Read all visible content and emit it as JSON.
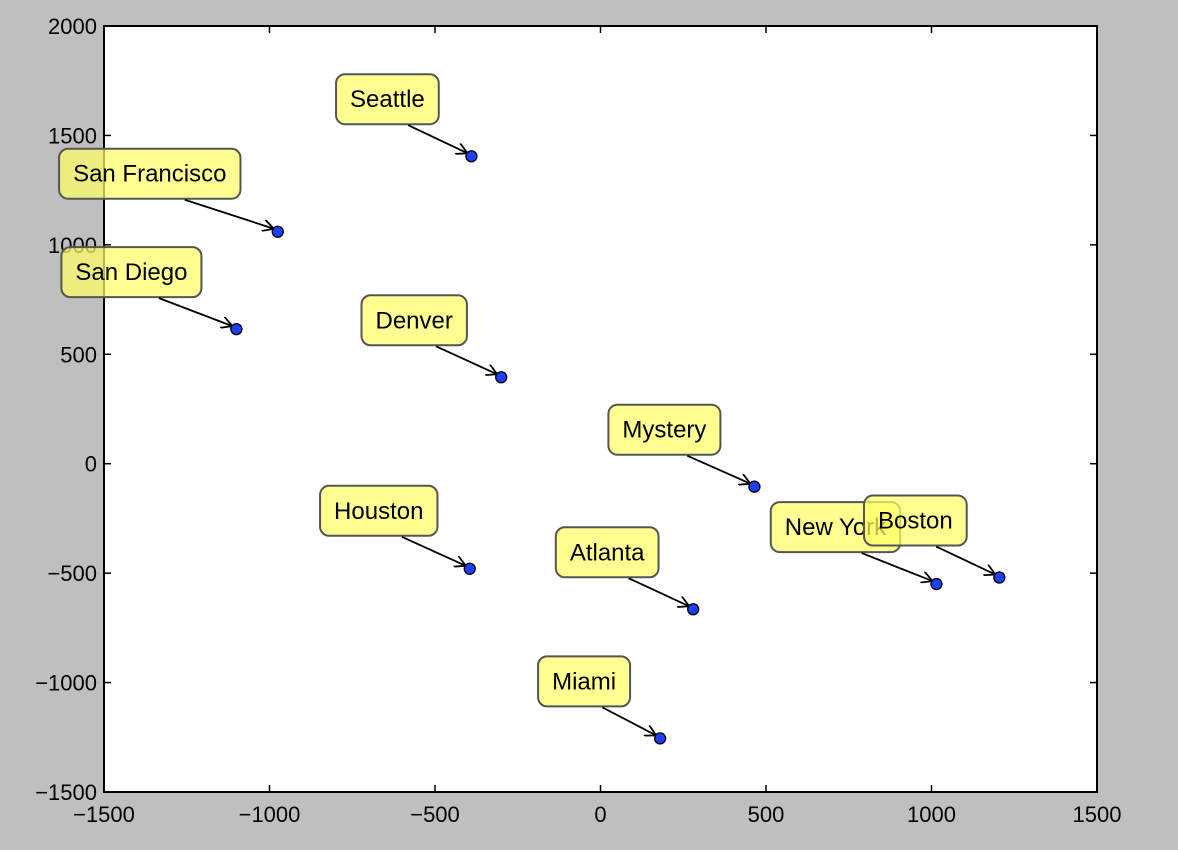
{
  "chart_data": {
    "type": "scatter",
    "title": "",
    "xlabel": "",
    "ylabel": "",
    "xlim": [
      -1500,
      1500
    ],
    "ylim": [
      -1500,
      2000
    ],
    "xticks": [
      -1500,
      -1000,
      -500,
      0,
      500,
      1000,
      1500
    ],
    "yticks": [
      -1500,
      -1000,
      -500,
      0,
      500,
      1000,
      1500,
      2000
    ],
    "xtick_labels": [
      "−1500",
      "−1000",
      "−500",
      "0",
      "500",
      "1000",
      "1500"
    ],
    "ytick_labels": [
      "−1500",
      "−1000",
      "−500",
      "0",
      "500",
      "1000",
      "1500",
      "2000"
    ],
    "grid": false,
    "points": [
      {
        "label": "Seattle",
        "x": -390,
        "y": 1405
      },
      {
        "label": "San Francisco",
        "x": -975,
        "y": 1060
      },
      {
        "label": "San Diego",
        "x": -1100,
        "y": 615
      },
      {
        "label": "Denver",
        "x": -300,
        "y": 395
      },
      {
        "label": "Mystery",
        "x": 465,
        "y": -105
      },
      {
        "label": "Houston",
        "x": -395,
        "y": -480
      },
      {
        "label": "Atlanta",
        "x": 280,
        "y": -665
      },
      {
        "label": "New York",
        "x": 1015,
        "y": -550
      },
      {
        "label": "Boston",
        "x": 1205,
        "y": -520
      },
      {
        "label": "Miami",
        "x": 180,
        "y": -1255
      }
    ],
    "colors": {
      "background": "#bfbfbf",
      "plot_area": "#ffffff",
      "marker_fill": "#1f3fff",
      "label_fill": "#ffff66",
      "label_border": "#555555"
    }
  }
}
